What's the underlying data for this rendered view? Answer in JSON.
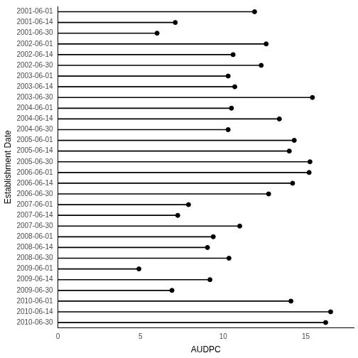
{
  "chart_data": {
    "type": "lollipop",
    "orientation": "horizontal",
    "x_label": "AUDPC",
    "y_label": "Establishment Date",
    "categories": [
      "2001-06-01",
      "2001-06-14",
      "2001-06-30",
      "2002-06-01",
      "2002-06-14",
      "2002-06-30",
      "2003-06-01",
      "2003-06-14",
      "2003-06-30",
      "2004-06-01",
      "2004-06-14",
      "2004-06-30",
      "2005-06-01",
      "2005-06-14",
      "2005-06-30",
      "2006-06-01",
      "2006-06-14",
      "2006-06-30",
      "2007-06-01",
      "2007-06-14",
      "2007-06-30",
      "2008-06-01",
      "2008-06-14",
      "2008-06-30",
      "2009-06-01",
      "2009-06-14",
      "2009-06-30",
      "2010-06-01",
      "2010-06-14",
      "2010-06-30"
    ],
    "values": [
      11.9,
      7.1,
      6.0,
      12.6,
      10.6,
      12.3,
      10.3,
      10.7,
      15.4,
      10.5,
      13.4,
      10.3,
      14.3,
      14.0,
      15.25,
      15.2,
      14.2,
      12.75,
      7.9,
      7.25,
      11.0,
      9.4,
      9.05,
      10.35,
      4.9,
      9.2,
      6.9,
      14.1,
      16.5,
      16.2
    ],
    "color": "#000000",
    "marker": "circle",
    "xlim": [
      0,
      17.9
    ],
    "xticks": [
      0,
      5,
      10,
      15
    ],
    "grid": false
  }
}
